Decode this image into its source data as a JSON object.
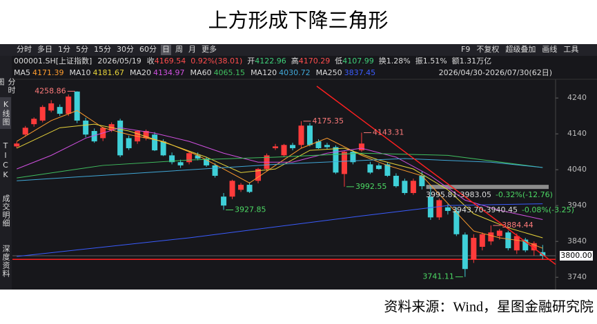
{
  "page_title": "上方形成下降三角形",
  "source": "资料来源：Wind，星图金融研究院",
  "toolbar": {
    "left": [
      "分时",
      "多日",
      "1分",
      "5分",
      "15分",
      "30分",
      "60分",
      "日",
      "周",
      "月",
      "更多"
    ],
    "active": 7,
    "right": [
      "F9",
      "不复权",
      "超级叠加",
      "画线",
      "工具"
    ]
  },
  "sidebar": [
    "分时图",
    "K线图",
    "TICK",
    "成交明细",
    "深度资料"
  ],
  "sidebar_active": 1,
  "quote": {
    "symbol": "000001.SH[上证指数]",
    "date": "2026/05/19",
    "items": [
      {
        "label": "收",
        "value": "4169.54",
        "color": "#ff4d4d"
      },
      {
        "value": "0.92%(38.01)",
        "color": "#ff4d4d"
      },
      {
        "label": "开",
        "value": "4122.96",
        "color": "#3fd07a"
      },
      {
        "label": "高",
        "value": "4170.29",
        "color": "#ff4d4d"
      },
      {
        "label": "低",
        "value": "4107.99",
        "color": "#3fd07a"
      },
      {
        "label": "换",
        "value": "1.28%",
        "color": "#dddddd"
      },
      {
        "label": "振",
        "value": "1.51%",
        "color": "#dddddd"
      },
      {
        "label": "额",
        "value": "1.31万亿",
        "color": "#dddddd"
      }
    ]
  },
  "date_range": "2026/04/30-2026/07/30(62日)",
  "chart_data": {
    "type": "candlestick",
    "up_color": "#ff3b3b",
    "down_color": "#3fd0d8",
    "xlim": [
      -0.5,
      62.5
    ],
    "ylim": [
      3725,
      4273
    ],
    "yticks": [
      4240,
      4140,
      4040,
      3940,
      3840,
      3740
    ],
    "candles": [
      [
        4105,
        4118,
        4100,
        4113
      ],
      [
        4138,
        4162,
        4132,
        4157
      ],
      [
        4167,
        4186,
        4160,
        4182
      ],
      [
        4177,
        4220,
        4172,
        4215
      ],
      [
        4205,
        4234,
        4200,
        4225
      ],
      [
        4215,
        4222,
        4190,
        4196
      ],
      [
        4196,
        4250,
        4190,
        4244
      ],
      [
        4258,
        4258.86,
        4170,
        4177
      ],
      [
        4177,
        4185,
        4130,
        4138
      ],
      [
        4148,
        4155,
        4115,
        4119
      ],
      [
        4128,
        4160,
        4120,
        4157
      ],
      [
        4150,
        4172,
        4145,
        4167
      ],
      [
        4177,
        4182,
        4075,
        4080
      ],
      [
        4128,
        4135,
        4095,
        4100
      ],
      [
        4119,
        4150,
        4112,
        4148
      ],
      [
        4128,
        4152,
        4122,
        4148
      ],
      [
        4138,
        4145,
        4092,
        4094
      ],
      [
        4119,
        4125,
        4078,
        4080
      ],
      [
        4080,
        4088,
        4055,
        4061
      ],
      [
        4061,
        4068,
        4045,
        4052
      ],
      [
        4061,
        4090,
        4055,
        4086
      ],
      [
        4080,
        4088,
        4066,
        4071
      ],
      [
        4071,
        4076,
        4048,
        4052
      ],
      [
        4052,
        4058,
        4018,
        4023
      ],
      [
        3965,
        3975,
        3927.85,
        3940
      ],
      [
        3965,
        4012,
        3958,
        4009
      ],
      [
        3984,
        4003,
        3978,
        3998
      ],
      [
        3998,
        4005,
        3975,
        3978
      ],
      [
        4009,
        4045,
        4002,
        4042
      ],
      [
        4042,
        4085,
        4035,
        4080
      ],
      [
        4100,
        4112,
        4095,
        4105
      ],
      [
        4080,
        4112,
        4075,
        4109
      ],
      [
        4109,
        4115,
        4094,
        4100
      ],
      [
        4109,
        4175.35,
        4100,
        4163
      ],
      [
        4163,
        4170,
        4105,
        4109
      ],
      [
        4119,
        4125,
        4098,
        4100
      ],
      [
        4109,
        4115,
        4098,
        4103
      ],
      [
        4103,
        4108,
        4028,
        4032
      ],
      [
        4028,
        4093,
        3992.55,
        4090
      ],
      [
        4090,
        4095,
        4055,
        4061
      ],
      [
        4094,
        4143.31,
        4090,
        4113
      ],
      [
        4055,
        4062,
        4028,
        4032
      ],
      [
        4052,
        4058,
        4040,
        4042
      ],
      [
        4055,
        4060,
        4020,
        4023
      ],
      [
        4023,
        4030,
        3990,
        3994
      ],
      [
        4009,
        4015,
        3970,
        3975
      ],
      [
        3975,
        4015,
        3970,
        4009
      ],
      [
        4023,
        4035,
        3985,
        3994
      ],
      [
        3965,
        3995.81,
        3900,
        3907
      ],
      [
        3907,
        3960,
        3900,
        3955
      ],
      [
        3935,
        3943.7,
        3915,
        3925
      ],
      [
        3925,
        3935,
        3855,
        3860
      ],
      [
        3859,
        3865,
        3741.11,
        3763
      ],
      [
        3790,
        3860,
        3780,
        3850
      ],
      [
        3825,
        3865,
        3815,
        3860
      ],
      [
        3840,
        3884.44,
        3830,
        3865
      ],
      [
        3855,
        3875,
        3845,
        3870
      ],
      [
        3865,
        3870,
        3815,
        3821
      ],
      [
        3815,
        3862,
        3805,
        3855
      ],
      [
        3845,
        3850,
        3810,
        3815
      ],
      [
        3815,
        3840,
        3800,
        3835
      ],
      [
        3810,
        3830,
        3790,
        3800
      ]
    ],
    "series": [
      {
        "name": "MA5",
        "current": 4171.39,
        "color": "#ff9d2e",
        "x": [
          0,
          4,
          7,
          10,
          13,
          17,
          21,
          24,
          27,
          30,
          33,
          36,
          40,
          43,
          47,
          50,
          53,
          56,
          59,
          61
        ],
        "values": [
          4119,
          4177,
          4205,
          4157,
          4138,
          4119,
          4080,
          4042,
          4003,
          4052,
          4100,
          4128,
          4080,
          4052,
          4023,
          3946,
          3869,
          3850,
          3840,
          3821
        ]
      },
      {
        "name": "MA10",
        "current": 4181.67,
        "color": "#e8d43a",
        "x": [
          0,
          5,
          9,
          13,
          18,
          22,
          26,
          30,
          34,
          38,
          42,
          46,
          50,
          53,
          57,
          61
        ],
        "values": [
          4100,
          4157,
          4167,
          4148,
          4109,
          4075,
          4032,
          4042,
          4094,
          4100,
          4067,
          4042,
          3984,
          3917,
          3878,
          3850
        ]
      },
      {
        "name": "MA20",
        "current": 4134.97,
        "color": "#d050e0",
        "x": [
          0,
          4,
          8,
          12,
          16,
          20,
          24,
          28,
          32,
          36,
          40,
          44,
          48,
          52,
          56,
          61
        ],
        "values": [
          4042,
          4080,
          4128,
          4157,
          4142,
          4119,
          4086,
          4061,
          4061,
          4086,
          4100,
          4075,
          4023,
          3955,
          3927,
          3901
        ]
      },
      {
        "name": "MA60",
        "current": 4065.15,
        "color": "#40c060",
        "x": [
          0,
          10,
          20,
          30,
          40,
          50,
          61
        ],
        "values": [
          4017,
          4052,
          4067,
          4075,
          4086,
          4080,
          4046
        ]
      },
      {
        "name": "MA120",
        "current": 4030.72,
        "color": "#40a8d8",
        "x": [
          0,
          15,
          30,
          45,
          55,
          61
        ],
        "values": [
          4009,
          4032,
          4055,
          4071,
          4061,
          4046
        ]
      },
      {
        "name": "MA250",
        "current": 3837.45,
        "color": "#3a5cff",
        "x": [
          0,
          20,
          40,
          50,
          61
        ],
        "values": [
          3798,
          3850,
          3911,
          3940,
          3945
        ]
      }
    ],
    "trendline": {
      "x": [
        34.8,
        62.5
      ],
      "values": [
        4273,
        3776
      ],
      "color": "#ff2020"
    },
    "hlines": [
      {
        "value": 3992,
        "x": 47.5,
        "color": "#8c8c8c",
        "style": "band"
      },
      {
        "value": 3790,
        "x": -0.5,
        "color": "#ff2020",
        "style": "line"
      }
    ],
    "last_price": {
      "value": 3800,
      "label": "3800.00"
    },
    "extremes": [
      {
        "value": 4258.86,
        "x": 7,
        "side": "left",
        "kind": "high"
      },
      {
        "value": 4175.35,
        "x": 33,
        "side": "right",
        "kind": "high"
      },
      {
        "value": 4143.31,
        "x": 40,
        "side": "right",
        "kind": "high"
      },
      {
        "value": 3927.85,
        "x": 24,
        "side": "right",
        "kind": "low"
      },
      {
        "value": 3992.55,
        "x": 38,
        "side": "right",
        "kind": "low"
      },
      {
        "value": 3884.44,
        "x": 55,
        "side": "right",
        "kind": "high"
      },
      {
        "value": 3741.11,
        "x": 52,
        "side": "left",
        "kind": "low"
      }
    ],
    "high_color": "#ff7b7b",
    "low_color": "#4cd964",
    "range_notes": [
      {
        "range": "3995.81-3983.05",
        "change": "-0.32%(-12.76)"
      },
      {
        "range": "3943.70-3940.45",
        "change": "-0.08%(-3.25)"
      }
    ]
  }
}
